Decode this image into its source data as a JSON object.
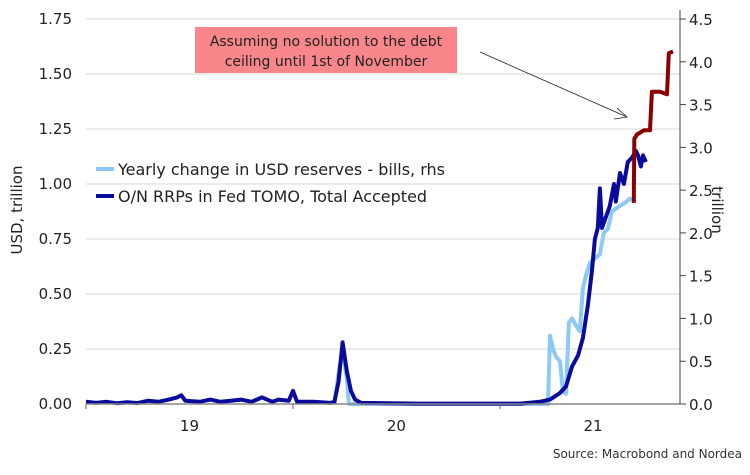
{
  "chart_data": {
    "type": "line",
    "title": "",
    "ylabel": "USD, trillion",
    "y2label": "trillion",
    "ylim": [
      0,
      1.75
    ],
    "y2lim": [
      0,
      4.5
    ],
    "xlim": [
      2019.0,
      2021.87
    ],
    "yticks": [
      "0.00",
      "0.25",
      "0.50",
      "0.75",
      "1.00",
      "1.25",
      "1.50",
      "1.75"
    ],
    "y2ticks": [
      "0.0",
      "0.5",
      "1.0",
      "1.5",
      "2.0",
      "2.5",
      "3.0",
      "3.5",
      "4.0",
      "4.5"
    ],
    "xticks": [
      {
        "label": "19",
        "at": 2019.5
      },
      {
        "label": "20",
        "at": 2020.5
      },
      {
        "label": "21",
        "at": 2021.45
      }
    ],
    "grid": true,
    "legend_position": "middle-left",
    "annotation": "Assuming no solution to the debt ceiling until 1st of November",
    "source": "Source: Macrobond and Nordea",
    "series": [
      {
        "name": "Yearly change in USD reserves - bills, rhs",
        "axis": "right",
        "color": "#8ec8f5",
        "points": [
          [
            2020.2,
            0
          ],
          [
            2020.22,
            0.35
          ],
          [
            2020.24,
            0.65
          ],
          [
            2020.26,
            0.3
          ],
          [
            2020.27,
            0
          ],
          [
            2021.232,
            0
          ],
          [
            2021.242,
            0.8
          ],
          [
            2021.256,
            0.65
          ],
          [
            2021.271,
            0.55
          ],
          [
            2021.29,
            0.5
          ],
          [
            2021.304,
            0.15
          ],
          [
            2021.319,
            0.12
          ],
          [
            2021.333,
            0.95
          ],
          [
            2021.348,
            1.0
          ],
          [
            2021.372,
            0.9
          ],
          [
            2021.386,
            0.85
          ],
          [
            2021.401,
            1.35
          ],
          [
            2021.415,
            1.5
          ],
          [
            2021.435,
            1.65
          ],
          [
            2021.459,
            1.7
          ],
          [
            2021.483,
            1.75
          ],
          [
            2021.502,
            2.0
          ],
          [
            2021.522,
            2.05
          ],
          [
            2021.541,
            2.25
          ],
          [
            2021.57,
            2.3
          ],
          [
            2021.604,
            2.35
          ],
          [
            2021.628,
            2.4
          ],
          [
            2021.638,
            2.38
          ]
        ]
      },
      {
        "name": "O/N RRPs in Fed TOMO, Total Accepted",
        "axis": "left",
        "color": "#0a0a9c",
        "points": [
          [
            2019.0,
            0.01
          ],
          [
            2019.05,
            0.005
          ],
          [
            2019.1,
            0.01
          ],
          [
            2019.15,
            0.003
          ],
          [
            2019.2,
            0.008
          ],
          [
            2019.25,
            0.004
          ],
          [
            2019.3,
            0.015
          ],
          [
            2019.35,
            0.01
          ],
          [
            2019.4,
            0.02
          ],
          [
            2019.44,
            0.03
          ],
          [
            2019.46,
            0.04
          ],
          [
            2019.48,
            0.015
          ],
          [
            2019.55,
            0.01
          ],
          [
            2019.6,
            0.02
          ],
          [
            2019.65,
            0.01
          ],
          [
            2019.7,
            0.015
          ],
          [
            2019.75,
            0.02
          ],
          [
            2019.8,
            0.01
          ],
          [
            2019.85,
            0.03
          ],
          [
            2019.9,
            0.01
          ],
          [
            2019.93,
            0.02
          ],
          [
            2019.98,
            0.015
          ],
          [
            2020.0,
            0.06
          ],
          [
            2020.02,
            0.01
          ],
          [
            2020.1,
            0.01
          ],
          [
            2020.18,
            0.005
          ],
          [
            2020.2,
            0.01
          ],
          [
            2020.22,
            0.1
          ],
          [
            2020.24,
            0.28
          ],
          [
            2020.26,
            0.15
          ],
          [
            2020.28,
            0.06
          ],
          [
            2020.3,
            0.02
          ],
          [
            2020.33,
            0.005
          ],
          [
            2020.6,
            0.002
          ],
          [
            2021.1,
            0.002
          ],
          [
            2021.193,
            0.01
          ],
          [
            2021.242,
            0.02
          ],
          [
            2021.29,
            0.05
          ],
          [
            2021.319,
            0.08
          ],
          [
            2021.348,
            0.17
          ],
          [
            2021.377,
            0.22
          ],
          [
            2021.401,
            0.3
          ],
          [
            2021.425,
            0.45
          ],
          [
            2021.444,
            0.6
          ],
          [
            2021.459,
            0.75
          ],
          [
            2021.473,
            0.8
          ],
          [
            2021.483,
            0.98
          ],
          [
            2021.493,
            0.8
          ],
          [
            2021.512,
            0.85
          ],
          [
            2021.531,
            0.9
          ],
          [
            2021.551,
            1.0
          ],
          [
            2021.56,
            0.92
          ],
          [
            2021.58,
            1.05
          ],
          [
            2021.599,
            1.0
          ],
          [
            2021.618,
            1.1
          ],
          [
            2021.638,
            1.12
          ],
          [
            2021.657,
            1.15
          ],
          [
            2021.667,
            1.13
          ],
          [
            2021.681,
            1.08
          ],
          [
            2021.691,
            1.13
          ],
          [
            2021.705,
            1.1
          ]
        ]
      },
      {
        "name": "Projection",
        "axis": "right",
        "color": "#8b0000",
        "in_legend": false,
        "points": [
          [
            2021.647,
            2.35
          ],
          [
            2021.649,
            3.1
          ],
          [
            2021.662,
            3.15
          ],
          [
            2021.696,
            3.2
          ],
          [
            2021.725,
            3.2
          ],
          [
            2021.734,
            3.65
          ],
          [
            2021.773,
            3.65
          ],
          [
            2021.807,
            3.62
          ],
          [
            2021.816,
            4.1
          ],
          [
            2021.836,
            4.12
          ]
        ]
      }
    ]
  }
}
